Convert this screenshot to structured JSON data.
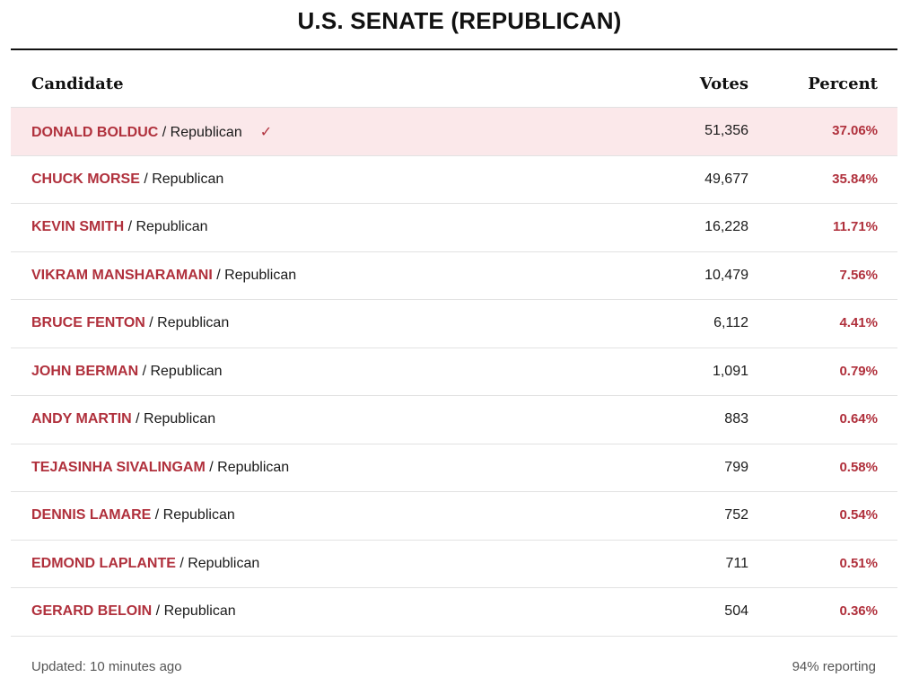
{
  "title": "U.S. SENATE (REPUBLICAN)",
  "columns": {
    "candidate": "Candidate",
    "votes": "Votes",
    "percent": "Percent"
  },
  "rows": [
    {
      "name": "DONALD BOLDUC",
      "party": " / Republican",
      "votes": "51,356",
      "percent": "37.06%",
      "winner": true,
      "check": "✓"
    },
    {
      "name": "CHUCK MORSE",
      "party": " / Republican",
      "votes": "49,677",
      "percent": "35.84%"
    },
    {
      "name": "KEVIN SMITH",
      "party": " / Republican",
      "votes": "16,228",
      "percent": "11.71%"
    },
    {
      "name": "VIKRAM MANSHARAMANI",
      "party": " / Republican",
      "votes": "10,479",
      "percent": "7.56%"
    },
    {
      "name": "BRUCE FENTON",
      "party": " / Republican",
      "votes": "6,112",
      "percent": "4.41%"
    },
    {
      "name": "JOHN BERMAN",
      "party": " / Republican",
      "votes": "1,091",
      "percent": "0.79%"
    },
    {
      "name": "ANDY MARTIN",
      "party": " / Republican",
      "votes": "883",
      "percent": "0.64%"
    },
    {
      "name": "TEJASINHA SIVALINGAM",
      "party": " / Republican",
      "votes": "799",
      "percent": "0.58%"
    },
    {
      "name": "DENNIS LAMARE",
      "party": " / Republican",
      "votes": "752",
      "percent": "0.54%"
    },
    {
      "name": "EDMOND LAPLANTE",
      "party": " / Republican",
      "votes": "711",
      "percent": "0.51%"
    },
    {
      "name": "GERARD BELOIN",
      "party": " / Republican",
      "votes": "504",
      "percent": "0.36%"
    }
  ],
  "footer": {
    "updated": "Updated: 10 minutes ago",
    "reporting": "94% reporting"
  },
  "colors": {
    "accent": "#b0303c",
    "winner_bg": "#fbe8ea",
    "rule": "#111111",
    "divider": "#e2e2e2"
  }
}
